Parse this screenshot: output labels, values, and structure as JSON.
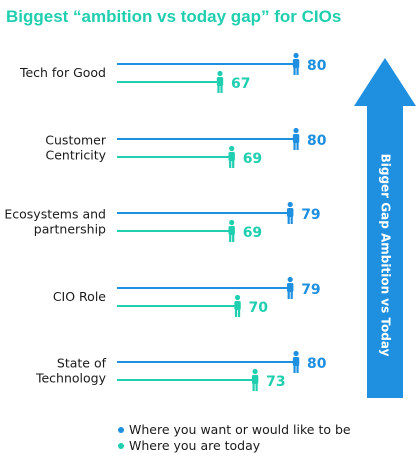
{
  "colors": {
    "want": "#1f8fe0",
    "today": "#1fcfb0",
    "title": "#1fcfb0",
    "arrow": "#1f8fe0"
  },
  "icons": {
    "marker": "person-icon",
    "legend": "dot-icon"
  },
  "chart_data": {
    "type": "bar",
    "title": "Biggest “ambition vs today gap” for CIOs",
    "categories": [
      [
        "Tech for Good"
      ],
      [
        "Customer",
        "Centricity"
      ],
      [
        "Ecosystems and",
        "partnership"
      ],
      [
        "CIO Role"
      ],
      [
        "State of",
        "Technology"
      ]
    ],
    "series": [
      {
        "name": "Where you want or would like to be",
        "values": [
          80,
          80,
          79,
          79,
          80
        ]
      },
      {
        "name": "Where you are today",
        "values": [
          67,
          69,
          69,
          70,
          73
        ]
      }
    ],
    "arrow_label": "Bigger Gap Ambition vs Today"
  }
}
